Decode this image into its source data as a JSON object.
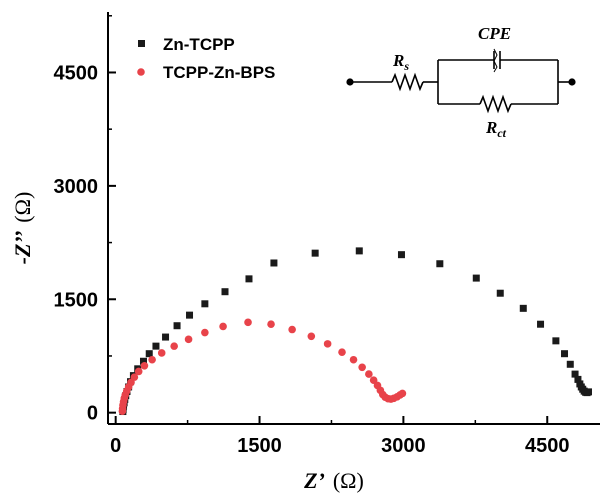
{
  "chart_data": {
    "type": "scatter",
    "title": "",
    "xlabel": {
      "main": "Z’",
      "unit": "(Ω)"
    },
    "ylabel": {
      "main": "-Z’’",
      "unit": "(Ω)"
    },
    "xlim": [
      -80,
      5050
    ],
    "ylim": [
      -150,
      5300
    ],
    "xticks": [
      0,
      1500,
      3000,
      4500
    ],
    "xtick_labels": [
      "0",
      "1500",
      "3000",
      "4500"
    ],
    "yticks": [
      0,
      1500,
      3000,
      4500
    ],
    "ytick_labels": [
      "0",
      "1500",
      "3000",
      "4500"
    ],
    "grid": false,
    "legend_position": "top-left",
    "series": [
      {
        "name": "Zn-TCPP",
        "marker": "square",
        "color": "#1a1a1a",
        "points": [
          [
            75,
            15
          ],
          [
            78,
            45
          ],
          [
            82,
            85
          ],
          [
            88,
            130
          ],
          [
            95,
            175
          ],
          [
            105,
            225
          ],
          [
            118,
            280
          ],
          [
            135,
            340
          ],
          [
            155,
            410
          ],
          [
            185,
            490
          ],
          [
            230,
            580
          ],
          [
            290,
            680
          ],
          [
            350,
            780
          ],
          [
            420,
            880
          ],
          [
            520,
            1000
          ],
          [
            640,
            1150
          ],
          [
            770,
            1290
          ],
          [
            930,
            1440
          ],
          [
            1140,
            1600
          ],
          [
            1390,
            1770
          ],
          [
            1650,
            1980
          ],
          [
            2080,
            2110
          ],
          [
            2540,
            2140
          ],
          [
            2980,
            2090
          ],
          [
            3380,
            1970
          ],
          [
            3760,
            1780
          ],
          [
            4010,
            1580
          ],
          [
            4250,
            1380
          ],
          [
            4430,
            1170
          ],
          [
            4590,
            950
          ],
          [
            4680,
            780
          ],
          [
            4740,
            640
          ],
          [
            4790,
            510
          ],
          [
            4820,
            440
          ],
          [
            4840,
            380
          ],
          [
            4855,
            340
          ],
          [
            4870,
            310
          ],
          [
            4885,
            285
          ],
          [
            4900,
            270
          ],
          [
            4915,
            265
          ],
          [
            4930,
            275
          ]
        ]
      },
      {
        "name": "TCPP-Zn-BPS",
        "marker": "circle",
        "color": "#e8434a",
        "points": [
          [
            70,
            20
          ],
          [
            72,
            55
          ],
          [
            76,
            100
          ],
          [
            82,
            145
          ],
          [
            90,
            190
          ],
          [
            100,
            235
          ],
          [
            115,
            285
          ],
          [
            135,
            340
          ],
          [
            160,
            400
          ],
          [
            195,
            470
          ],
          [
            240,
            545
          ],
          [
            300,
            620
          ],
          [
            380,
            700
          ],
          [
            480,
            790
          ],
          [
            610,
            880
          ],
          [
            760,
            970
          ],
          [
            930,
            1060
          ],
          [
            1120,
            1140
          ],
          [
            1380,
            1195
          ],
          [
            1620,
            1170
          ],
          [
            1840,
            1100
          ],
          [
            2040,
            1010
          ],
          [
            2210,
            910
          ],
          [
            2360,
            800
          ],
          [
            2480,
            700
          ],
          [
            2570,
            600
          ],
          [
            2640,
            510
          ],
          [
            2690,
            430
          ],
          [
            2730,
            360
          ],
          [
            2760,
            295
          ],
          [
            2785,
            240
          ],
          [
            2810,
            205
          ],
          [
            2840,
            185
          ],
          [
            2870,
            180
          ],
          [
            2900,
            190
          ],
          [
            2935,
            210
          ],
          [
            2965,
            235
          ],
          [
            2990,
            255
          ]
        ]
      }
    ],
    "inset": {
      "type": "equivalent-circuit",
      "labels": {
        "rs_main": "R",
        "rs_sub": "s",
        "cpe": "CPE",
        "rct_main": "R",
        "rct_sub": "ct"
      }
    }
  }
}
